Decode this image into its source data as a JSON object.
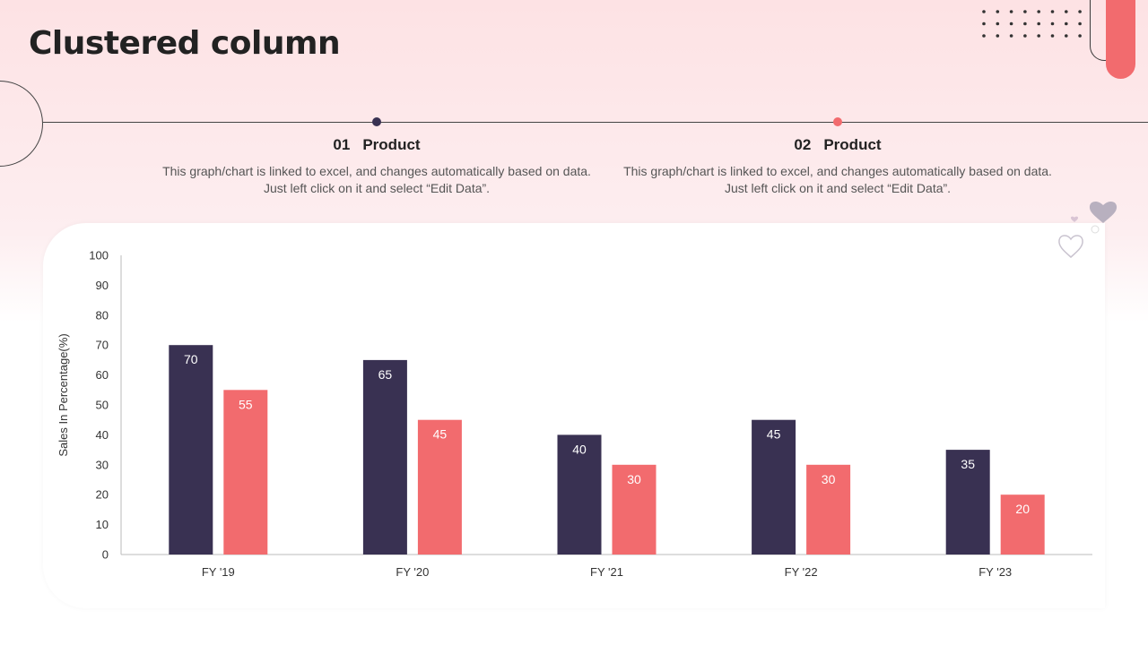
{
  "page": {
    "title": "Clustered column"
  },
  "sections": [
    {
      "number": "01",
      "heading": "Product",
      "text": "This graph/chart is linked to excel, and changes automatically based on data. Just left click on it and select “Edit Data”."
    },
    {
      "number": "02",
      "heading": "Product",
      "text": "This graph/chart is linked to excel, and changes automatically based on data. Just left click on it and select “Edit Data”."
    }
  ],
  "colors": {
    "series1": "#393152",
    "series2": "#f26b6e",
    "accent": "#f26b6e"
  },
  "chart_data": {
    "type": "bar",
    "categories": [
      "FY '19",
      "FY '20",
      "FY '21",
      "FY '22",
      "FY '23"
    ],
    "series": [
      {
        "values": [
          70,
          65,
          40,
          45,
          35
        ]
      },
      {
        "values": [
          55,
          45,
          30,
          30,
          20
        ]
      }
    ],
    "title": "",
    "xlabel": "",
    "ylabel": "Sales In Percentage(%)",
    "ylim": [
      0,
      100
    ],
    "yticks": [
      0,
      10,
      20,
      30,
      40,
      50,
      60,
      70,
      80,
      90,
      100
    ],
    "grid": false,
    "data_labels": true
  }
}
